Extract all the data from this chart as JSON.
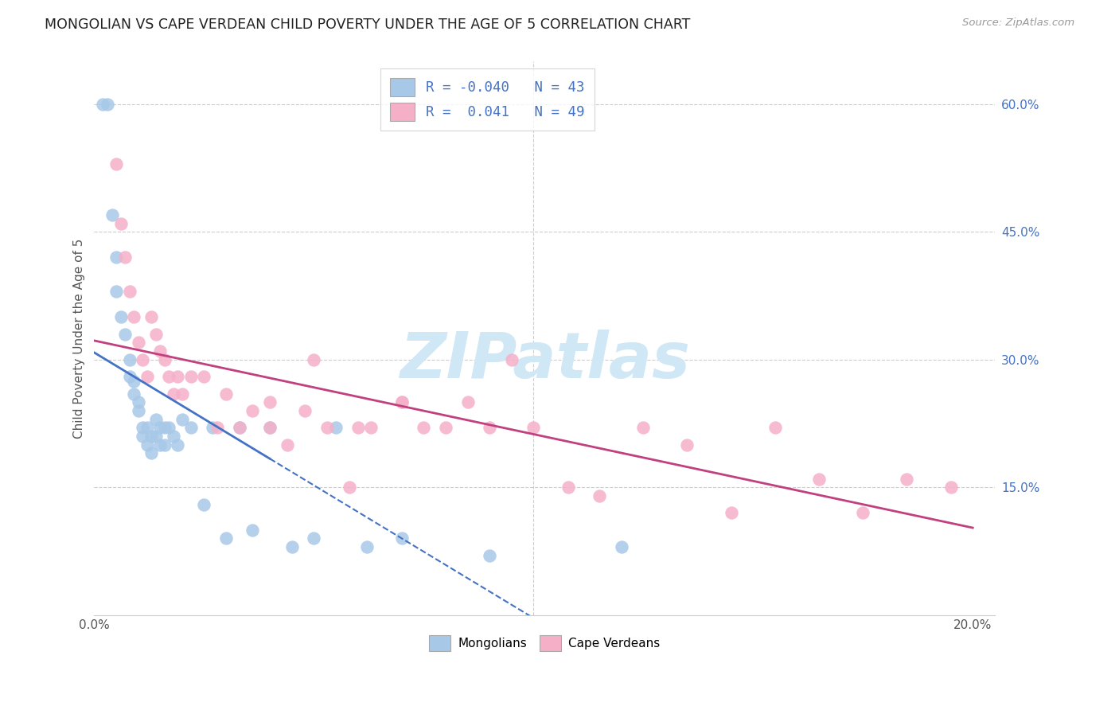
{
  "title": "MONGOLIAN VS CAPE VERDEAN CHILD POVERTY UNDER THE AGE OF 5 CORRELATION CHART",
  "source": "Source: ZipAtlas.com",
  "ylabel": "Child Poverty Under the Age of 5",
  "label_mongolians": "Mongolians",
  "label_cape_verdeans": "Cape Verdeans",
  "mongolian_R": -0.04,
  "mongolian_N": 43,
  "cape_verdean_R": 0.041,
  "cape_verdean_N": 49,
  "x_min": 0.0,
  "x_max": 0.205,
  "y_min": 0.0,
  "y_max": 0.65,
  "mongolian_color": "#a8c8e8",
  "cape_verdean_color": "#f5b0c8",
  "mongolian_line_color": "#4472c4",
  "cape_verdean_line_color": "#c04080",
  "legend_text_color": "#4472c4",
  "grid_color": "#cccccc",
  "background_color": "#ffffff",
  "axis_label_color": "#555555",
  "mongolian_x": [
    0.002,
    0.003,
    0.004,
    0.005,
    0.005,
    0.006,
    0.007,
    0.008,
    0.008,
    0.009,
    0.009,
    0.01,
    0.01,
    0.011,
    0.011,
    0.012,
    0.012,
    0.013,
    0.013,
    0.014,
    0.014,
    0.015,
    0.015,
    0.016,
    0.016,
    0.017,
    0.018,
    0.019,
    0.02,
    0.022,
    0.025,
    0.027,
    0.03,
    0.033,
    0.036,
    0.04,
    0.045,
    0.05,
    0.055,
    0.062,
    0.07,
    0.09,
    0.12
  ],
  "mongolian_y": [
    0.6,
    0.6,
    0.47,
    0.42,
    0.38,
    0.35,
    0.33,
    0.3,
    0.28,
    0.26,
    0.275,
    0.25,
    0.24,
    0.22,
    0.21,
    0.22,
    0.2,
    0.21,
    0.19,
    0.23,
    0.21,
    0.22,
    0.2,
    0.22,
    0.2,
    0.22,
    0.21,
    0.2,
    0.23,
    0.22,
    0.13,
    0.22,
    0.09,
    0.22,
    0.1,
    0.22,
    0.08,
    0.09,
    0.22,
    0.08,
    0.09,
    0.07,
    0.08
  ],
  "cape_verdean_x": [
    0.005,
    0.006,
    0.007,
    0.008,
    0.009,
    0.01,
    0.011,
    0.012,
    0.013,
    0.014,
    0.015,
    0.016,
    0.017,
    0.018,
    0.019,
    0.02,
    0.022,
    0.025,
    0.028,
    0.03,
    0.033,
    0.036,
    0.04,
    0.044,
    0.048,
    0.053,
    0.058,
    0.063,
    0.07,
    0.075,
    0.08,
    0.085,
    0.09,
    0.095,
    0.1,
    0.108,
    0.115,
    0.125,
    0.135,
    0.145,
    0.155,
    0.165,
    0.175,
    0.185,
    0.195,
    0.04,
    0.05,
    0.06,
    0.07
  ],
  "cape_verdean_y": [
    0.53,
    0.46,
    0.42,
    0.38,
    0.35,
    0.32,
    0.3,
    0.28,
    0.35,
    0.33,
    0.31,
    0.3,
    0.28,
    0.26,
    0.28,
    0.26,
    0.28,
    0.28,
    0.22,
    0.26,
    0.22,
    0.24,
    0.22,
    0.2,
    0.24,
    0.22,
    0.15,
    0.22,
    0.25,
    0.22,
    0.22,
    0.25,
    0.22,
    0.3,
    0.22,
    0.15,
    0.14,
    0.22,
    0.2,
    0.12,
    0.22,
    0.16,
    0.12,
    0.16,
    0.15,
    0.25,
    0.3,
    0.22,
    0.25
  ],
  "watermark_text": "ZIPatlas",
  "watermark_color": "#d0e8f5"
}
